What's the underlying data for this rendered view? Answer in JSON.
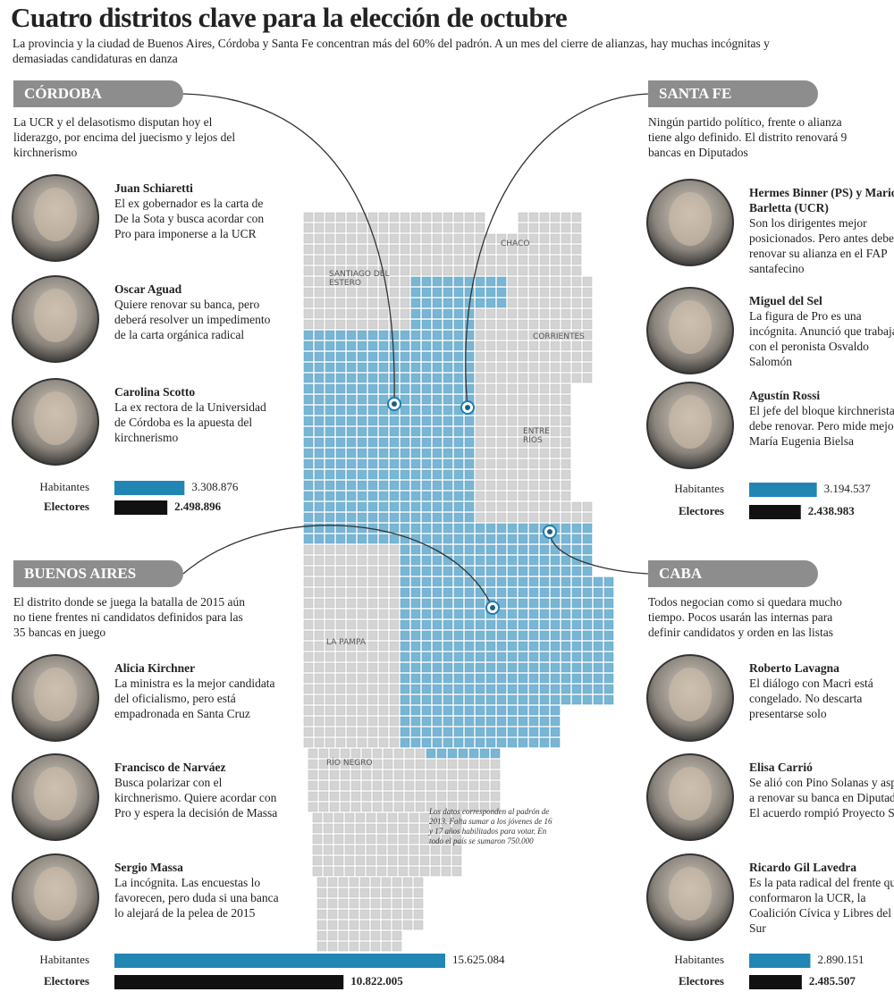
{
  "header": {
    "title": "Cuatro distritos clave para la elección de octubre",
    "subtitle": "La provincia y la ciudad de Buenos Aires, Córdoba y Santa Fe concentran más del 60% del padrón. A un mes del cierre de alianzas, hay muchas incógnitas y demasiadas candidaturas en danza"
  },
  "districts": [
    {
      "name": "CÓRDOBA",
      "intro": "La UCR y el delasotismo disputan hoy el liderazgo, por encima del juecismo y lejos del kirchnerismo",
      "people": [
        {
          "name": "Juan Schiaretti",
          "text": "El ex gobernador es la carta de De la Sota y busca acordar con Pro para imponerse a la UCR"
        },
        {
          "name": "Oscar Aguad",
          "text": "Quiere renovar su banca, pero deberá resolver un impedimento de la carta orgánica radical"
        },
        {
          "name": "Carolina Scotto",
          "text": "La ex rectora de la Universidad de Córdoba es la apuesta del kirchnerismo"
        }
      ],
      "stats": [
        {
          "label": "Habitantes",
          "value": 3308876,
          "value_label": "3.308.876"
        },
        {
          "label": "Electores",
          "value": 2498896,
          "value_label": "2.498.896"
        }
      ]
    },
    {
      "name": "SANTA FE",
      "intro": "Ningún partido político, frente o alianza tiene algo definido. El distrito renovará 9 bancas en Diputados",
      "people": [
        {
          "name": "Hermes Binner (PS) y Mario Barletta (UCR)",
          "text": "Son los dirigentes mejor posicionados. Pero antes deberán renovar su alianza en el FAP santafecino"
        },
        {
          "name": "Miguel del Sel",
          "text": "La figura de Pro es una incógnita. Anunció que trabajará con el peronista Osvaldo Salomón"
        },
        {
          "name": "Agustín Rossi",
          "text": "El jefe del bloque kirchnerista debe renovar. Pero mide mejor María Eugenia Bielsa"
        }
      ],
      "stats": [
        {
          "label": "Habitantes",
          "value": 3194537,
          "value_label": "3.194.537"
        },
        {
          "label": "Electores",
          "value": 2438983,
          "value_label": "2.438.983"
        }
      ]
    },
    {
      "name": "BUENOS AIRES",
      "intro": "El distrito donde se juega la batalla de 2015 aún no tiene frentes ni candidatos definidos para las 35 bancas en juego",
      "people": [
        {
          "name": "Alicia Kirchner",
          "text": "La ministra es la mejor candidata del oficialismo, pero está empadronada en Santa Cruz"
        },
        {
          "name": "Francisco de Narváez",
          "text": "Busca polarizar con el kirchnerismo. Quiere acordar con Pro y espera la decisión de Massa"
        },
        {
          "name": "Sergio Massa",
          "text": "La incógnita. Las encuestas lo favorecen, pero duda si una banca lo alejará de la pelea de 2015"
        }
      ],
      "stats": [
        {
          "label": "Habitantes",
          "value": 15625084,
          "value_label": "15.625.084"
        },
        {
          "label": "Electores",
          "value": 10822005,
          "value_label": "10.822.005"
        }
      ]
    },
    {
      "name": "CABA",
      "intro": "Todos negocian como si quedara mucho tiempo. Pocos usarán las internas para definir candidatos y orden en las listas",
      "people": [
        {
          "name": "Roberto Lavagna",
          "text": "El diálogo con Macri está congelado. No descarta presentarse solo"
        },
        {
          "name": "Elisa Carrió",
          "text": "Se alió con Pino Solanas y aspira a renovar su banca en Diputados. El acuerdo rompió Proyecto Sur"
        },
        {
          "name": "Ricardo Gil Lavedra",
          "text": "Es la pata radical del frente que conformaron la UCR, la Coalición Cívica y Libres del Sur"
        }
      ],
      "stats": [
        {
          "label": "Habitantes",
          "value": 2890151,
          "value_label": "2.890.151"
        },
        {
          "label": "Electores",
          "value": 2485507,
          "value_label": "2.485.507"
        }
      ]
    }
  ],
  "map": {
    "labels": [
      "CHACO",
      "SANTIAGO DEL ESTERO",
      "CORRIENTES",
      "ENTRE RÍOS",
      "LA PAMPA",
      "RÍO NEGRO"
    ],
    "note": "Los datos corresponden al padrón de 2013. Falta sumar a los jóvenes de 16 y 17 años habilitados para votar. En todo el país se sumaron 750.000"
  }
}
